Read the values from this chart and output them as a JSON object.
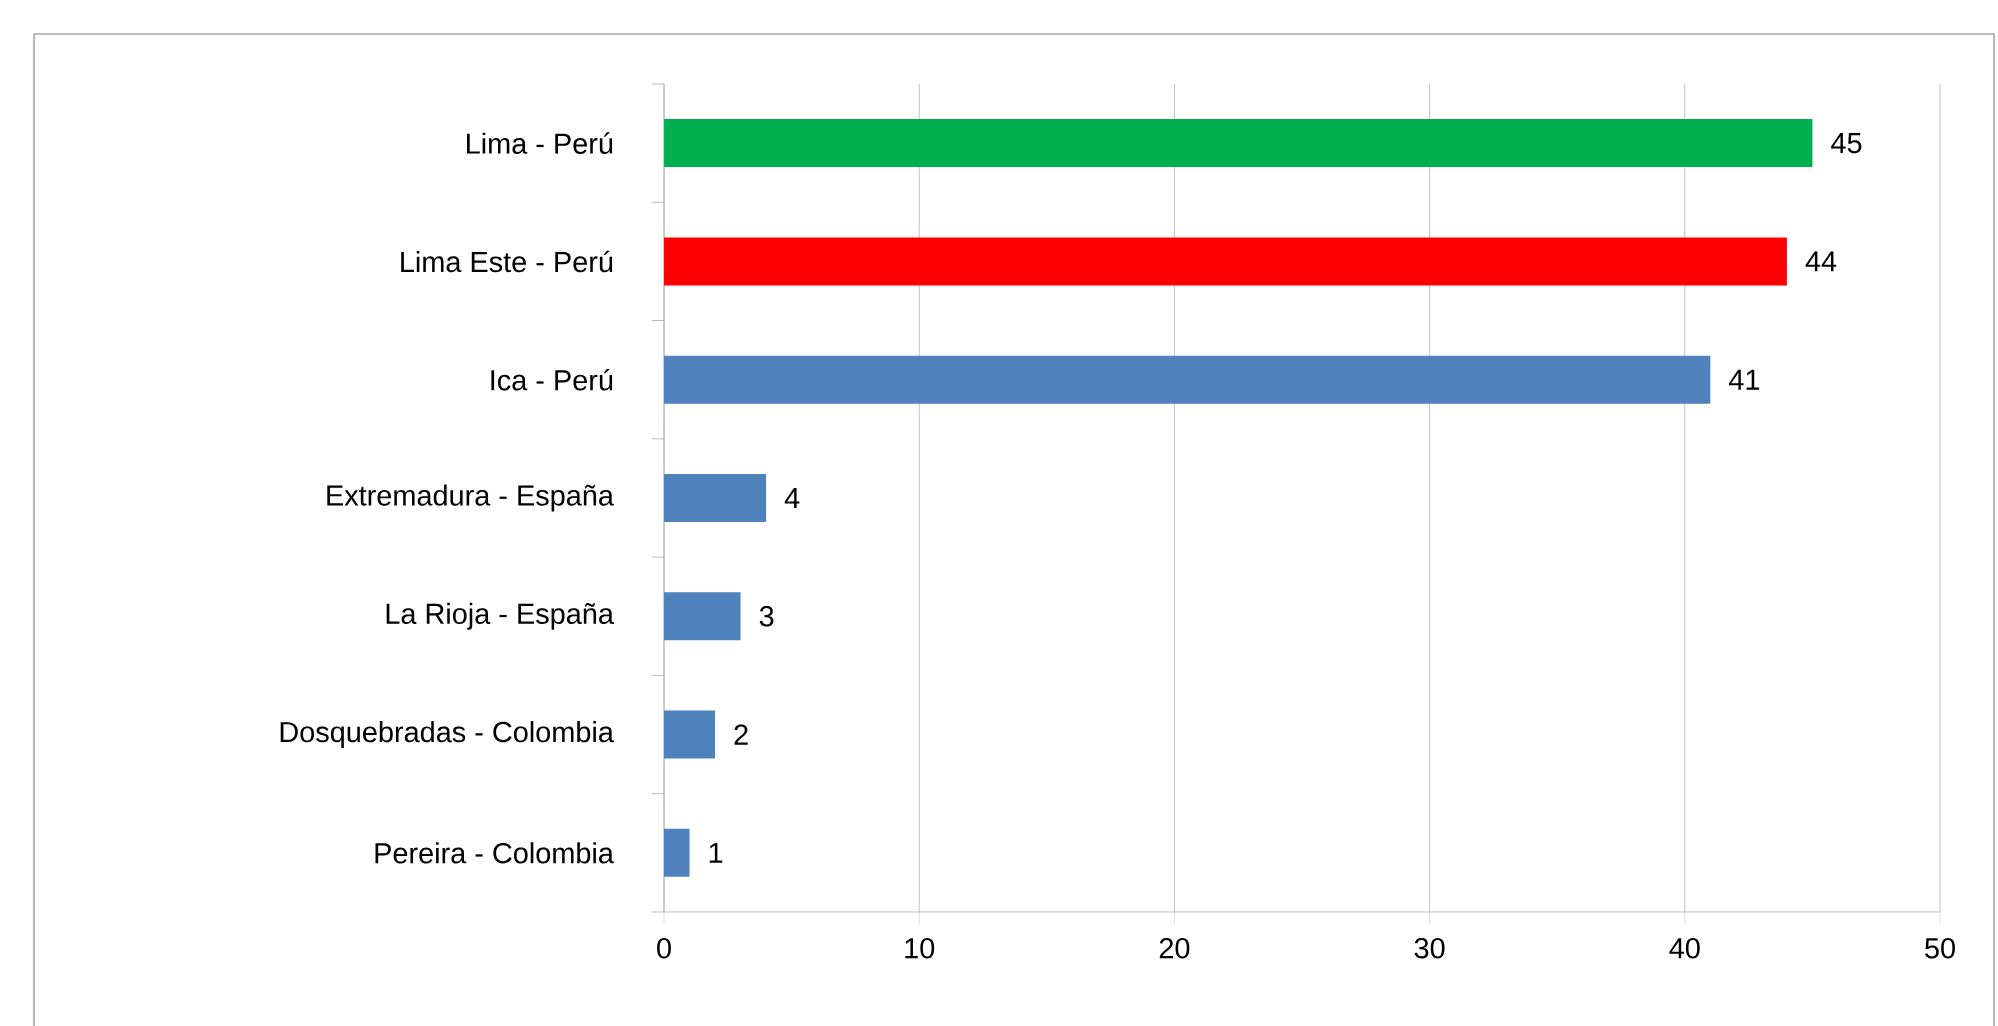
{
  "chart_data": {
    "type": "bar",
    "orientation": "horizontal",
    "categories": [
      "Lima - Perú",
      "Lima Este - Perú",
      "Ica - Perú",
      "Extremadura - España",
      "La Rioja - España",
      "Dosquebradas - Colombia",
      "Pereira - Colombia"
    ],
    "values": [
      45,
      44,
      41,
      4,
      3,
      2,
      1
    ],
    "colors": [
      "#00b050",
      "#ff0000",
      "#4f81bd",
      "#4f81bd",
      "#4f81bd",
      "#4f81bd",
      "#4f81bd"
    ],
    "xlim": [
      0,
      50
    ],
    "xticks": [
      0,
      10,
      20,
      30,
      40,
      50
    ],
    "grid": "x",
    "data_labels": true
  }
}
